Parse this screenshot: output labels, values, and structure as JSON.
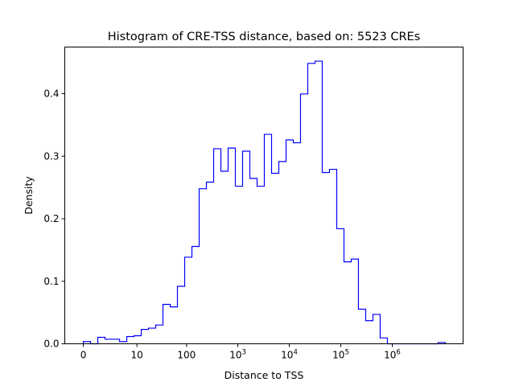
{
  "chart_data": {
    "type": "histogram",
    "title": "Histogram of CRE-TSS distance, based on: 5523 CREs",
    "xlabel": "Distance to TSS",
    "ylabel": "Density",
    "x_scale": "log10(distance + 1)",
    "bin_start_log10": 0,
    "bin_width_log10": 0.1406,
    "values": [
      0.0035,
      0,
      0.0103,
      0.0073,
      0.0073,
      0.0035,
      0.0116,
      0.0129,
      0.023,
      0.025,
      0.03,
      0.063,
      0.059,
      0.092,
      0.1385,
      0.1556,
      0.248,
      0.2585,
      0.312,
      0.276,
      0.313,
      0.252,
      0.308,
      0.2645,
      0.252,
      0.335,
      0.2727,
      0.2915,
      0.326,
      0.3215,
      0.3996,
      0.4485,
      0.452,
      0.274,
      0.279,
      0.184,
      0.131,
      0.1355,
      0.0553,
      0.037,
      0.047,
      0.0094,
      0,
      0,
      0,
      0,
      0,
      0,
      0,
      0.002
    ],
    "xlim_log10": [
      -0.36,
      7.375
    ],
    "ylim": [
      0,
      0.4746
    ],
    "x_ticks": [
      {
        "value": 0,
        "base": "0",
        "exp": ""
      },
      {
        "value": 10,
        "base": "10",
        "exp": ""
      },
      {
        "value": 100,
        "base": "100",
        "exp": ""
      },
      {
        "value": 1000,
        "base": "10",
        "exp": "3"
      },
      {
        "value": 10000,
        "base": "10",
        "exp": "4"
      },
      {
        "value": 100000,
        "base": "10",
        "exp": "5"
      },
      {
        "value": 1000000,
        "base": "10",
        "exp": "6"
      }
    ],
    "y_ticks": [
      {
        "value": 0,
        "label": "0.0"
      },
      {
        "value": 0.1,
        "label": "0.1"
      },
      {
        "value": 0.2,
        "label": "0.2"
      },
      {
        "value": 0.3,
        "label": "0.3"
      },
      {
        "value": 0.4,
        "label": "0.4"
      }
    ],
    "line_color": "#0000ff",
    "grid": false
  }
}
